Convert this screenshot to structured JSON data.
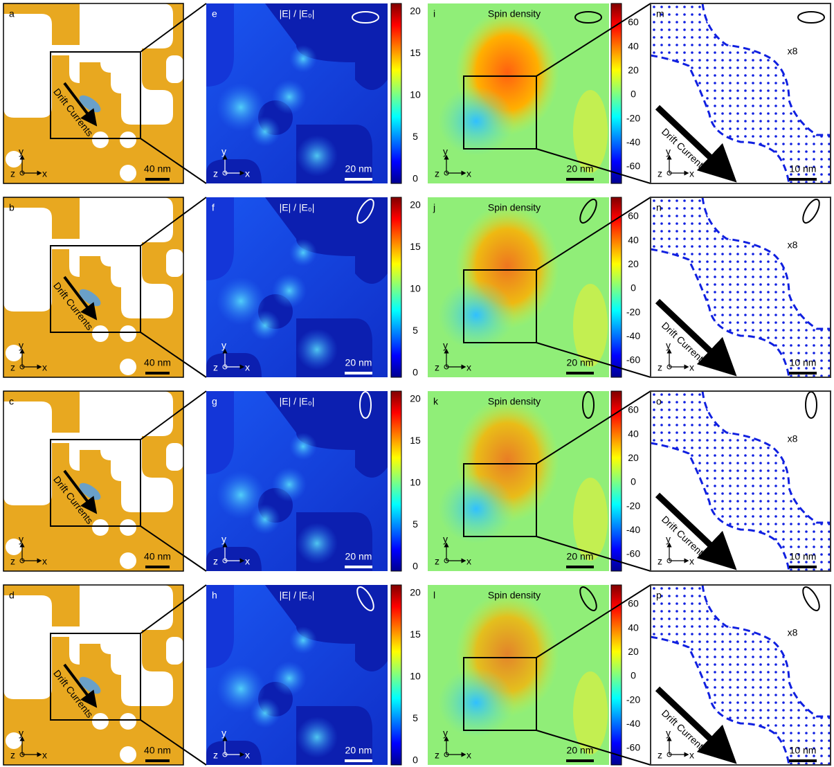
{
  "rows": [
    {
      "structure_label": "a",
      "field_label": "e",
      "spin_label": "i",
      "dipole_label": "m"
    },
    {
      "structure_label": "b",
      "field_label": "f",
      "spin_label": "j",
      "dipole_label": "n"
    },
    {
      "structure_label": "c",
      "field_label": "g",
      "spin_label": "k",
      "dipole_label": "o"
    },
    {
      "structure_label": "d",
      "field_label": "h",
      "spin_label": "l",
      "dipole_label": "p"
    }
  ],
  "structure": {
    "y_axis": "y",
    "z_axis": "z",
    "x_axis": "x",
    "scale_bar": "40 nm",
    "annotation": "Drift Currents"
  },
  "field": {
    "title": "|E| / |E₀|",
    "scale_bar": "20 nm",
    "colorbar_ticks": [
      "20",
      "15",
      "10",
      "5",
      "0"
    ]
  },
  "spin": {
    "title": "Spin density",
    "scale_bar": "20 nm",
    "colorbar_ticks": [
      "60",
      "40",
      "20",
      "0",
      "-20",
      "-40",
      "-60"
    ]
  },
  "dipole": {
    "magnification": "x8",
    "annotation": "Drift Currents",
    "scale_bar": "10 nm"
  }
}
